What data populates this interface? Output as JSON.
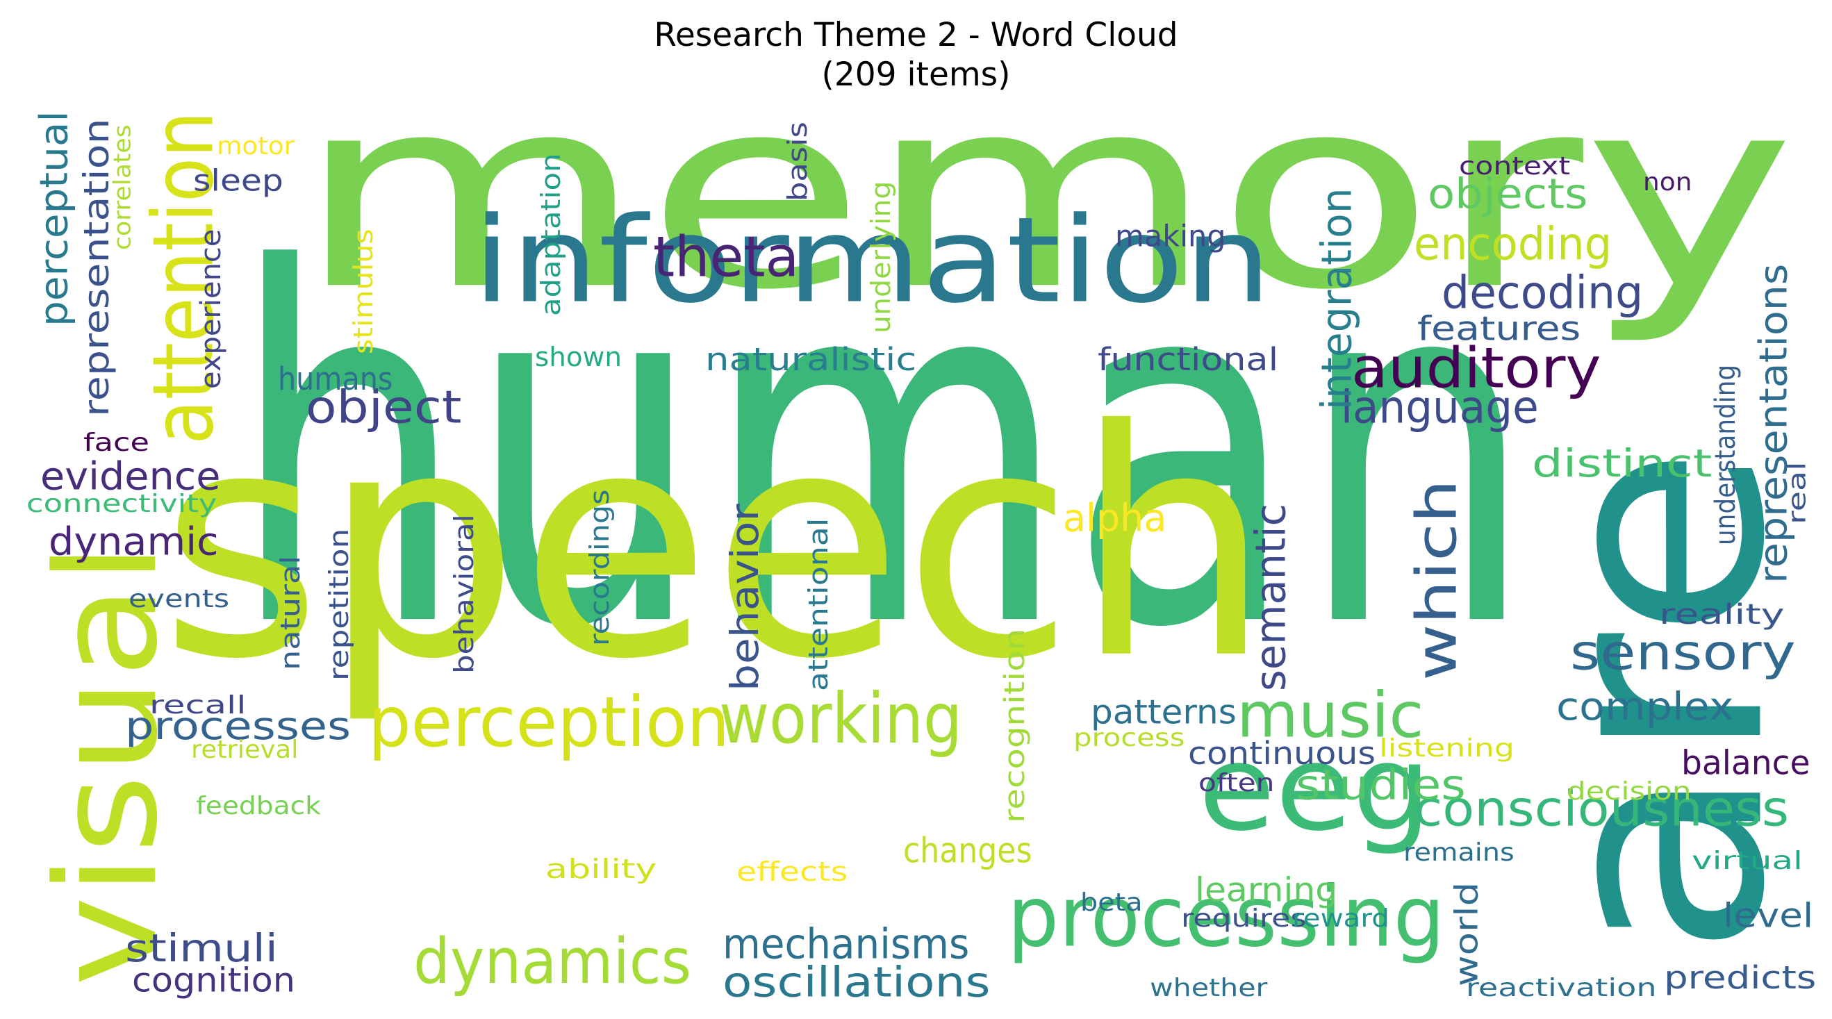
{
  "title": {
    "line1": "Research Theme 2 - Word Cloud",
    "line2": "(209 items)"
  },
  "words": [
    {
      "text": "memory",
      "color": "#7ad151"
    },
    {
      "text": "human",
      "color": "#3bb77a"
    },
    {
      "text": "speech",
      "color": "#bddf26"
    },
    {
      "text": "are",
      "color": "#21918c"
    },
    {
      "text": "information",
      "color": "#2a788e"
    },
    {
      "text": "visual",
      "color": "#bddf26"
    },
    {
      "text": "attention",
      "color": "#d8e219"
    },
    {
      "text": "eeg",
      "color": "#3bbb75"
    },
    {
      "text": "processing",
      "color": "#44bf70"
    },
    {
      "text": "perception",
      "color": "#d5e21a"
    },
    {
      "text": "working",
      "color": "#a8db34"
    },
    {
      "text": "music",
      "color": "#5ec962"
    },
    {
      "text": "dynamics",
      "color": "#a5db36"
    },
    {
      "text": "theta",
      "color": "#482475"
    },
    {
      "text": "auditory",
      "color": "#440154"
    },
    {
      "text": "consciousness",
      "color": "#35b779"
    },
    {
      "text": "sensory",
      "color": "#31688e"
    },
    {
      "text": "which",
      "color": "#355f8d"
    },
    {
      "text": "language",
      "color": "#3e4989"
    },
    {
      "text": "decoding",
      "color": "#3e4a89"
    },
    {
      "text": "encoding",
      "color": "#c2df23"
    },
    {
      "text": "objects",
      "color": "#5ec962"
    },
    {
      "text": "integration",
      "color": "#277f8e"
    },
    {
      "text": "object",
      "color": "#404387"
    },
    {
      "text": "mechanisms",
      "color": "#2d708e"
    },
    {
      "text": "oscillations",
      "color": "#2a788e"
    },
    {
      "text": "semantic",
      "color": "#3e4989"
    },
    {
      "text": "behavior",
      "color": "#3a538b"
    },
    {
      "text": "distinct",
      "color": "#4ac16d"
    },
    {
      "text": "complex",
      "color": "#2c728e"
    },
    {
      "text": "processes",
      "color": "#33638d"
    },
    {
      "text": "stimuli",
      "color": "#3e4c8a"
    },
    {
      "text": "evidence",
      "color": "#472d7b"
    },
    {
      "text": "dynamic",
      "color": "#482576"
    },
    {
      "text": "representations",
      "color": "#2f6c8e"
    },
    {
      "text": "perceptual",
      "color": "#29798e"
    },
    {
      "text": "representation",
      "color": "#3b518b"
    },
    {
      "text": "studies",
      "color": "#52c569"
    },
    {
      "text": "changes",
      "color": "#bddf26"
    },
    {
      "text": "alpha",
      "color": "#fde725"
    },
    {
      "text": "features",
      "color": "#365c8d"
    },
    {
      "text": "patterns",
      "color": "#2c728e"
    },
    {
      "text": "cognition",
      "color": "#46337e"
    },
    {
      "text": "balance",
      "color": "#470d60"
    },
    {
      "text": "level",
      "color": "#2f6b8e"
    },
    {
      "text": "learning",
      "color": "#5ec962"
    },
    {
      "text": "continuous",
      "color": "#3b528b"
    },
    {
      "text": "predicts",
      "color": "#375b8d"
    },
    {
      "text": "humans",
      "color": "#2e6f8e"
    },
    {
      "text": "naturalistic",
      "color": "#287d8e"
    },
    {
      "text": "functional",
      "color": "#3e4a89"
    },
    {
      "text": "making",
      "color": "#3f4889"
    },
    {
      "text": "sleep",
      "color": "#3f4889"
    },
    {
      "text": "world",
      "color": "#306a8e"
    },
    {
      "text": "reality",
      "color": "#3a548c"
    },
    {
      "text": "understanding",
      "color": "#355e8d"
    },
    {
      "text": "shown",
      "color": "#24aa83"
    },
    {
      "text": "connectivity",
      "color": "#3bbb75"
    },
    {
      "text": "recognition",
      "color": "#a0da39"
    },
    {
      "text": "context",
      "color": "#481f70"
    },
    {
      "text": "non",
      "color": "#48186a"
    },
    {
      "text": "motor",
      "color": "#fde725"
    },
    {
      "text": "experience",
      "color": "#404688"
    },
    {
      "text": "correlates",
      "color": "#addc30"
    },
    {
      "text": "face",
      "color": "#440154"
    },
    {
      "text": "events",
      "color": "#355f8d"
    },
    {
      "text": "recall",
      "color": "#3f4788"
    },
    {
      "text": "retrieval",
      "color": "#b5de2b"
    },
    {
      "text": "feedback",
      "color": "#75d054"
    },
    {
      "text": "ability",
      "color": "#d0e11c"
    },
    {
      "text": "effects",
      "color": "#fde725"
    },
    {
      "text": "process",
      "color": "#b5de2b"
    },
    {
      "text": "listening",
      "color": "#d8e219"
    },
    {
      "text": "often",
      "color": "#453781"
    },
    {
      "text": "decision",
      "color": "#93d741"
    },
    {
      "text": "remains",
      "color": "#2d708e"
    },
    {
      "text": "virtual",
      "color": "#22a884"
    },
    {
      "text": "beta",
      "color": "#2d708e"
    },
    {
      "text": "requires",
      "color": "#3b528b"
    },
    {
      "text": "reward",
      "color": "#20928c"
    },
    {
      "text": "reactivation",
      "color": "#2d708e"
    },
    {
      "text": "whether",
      "color": "#2c728e"
    },
    {
      "text": "real",
      "color": "#3a548c"
    },
    {
      "text": "stimulus",
      "color": "#e5e419"
    },
    {
      "text": "adaptation",
      "color": "#1fa188"
    },
    {
      "text": "underlying",
      "color": "#90d743"
    },
    {
      "text": "basis",
      "color": "#3f4788"
    },
    {
      "text": "natural",
      "color": "#355f8d"
    },
    {
      "text": "repetition",
      "color": "#3b528b"
    },
    {
      "text": "behavioral",
      "color": "#3e4a89"
    },
    {
      "text": "recordings",
      "color": "#2a788e"
    },
    {
      "text": "attentional",
      "color": "#2a788e"
    }
  ]
}
